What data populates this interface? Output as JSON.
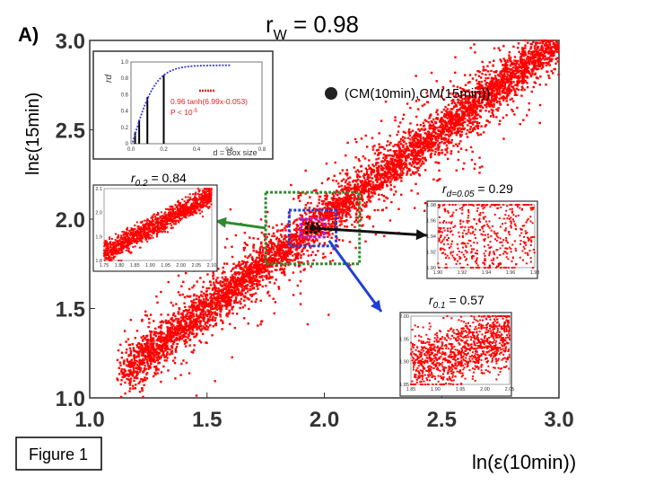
{
  "panel_label": "A)",
  "figure_label": "Figure 1",
  "main_title_r": "r",
  "main_title_sub": "W",
  "main_title_rest": " = 0.98",
  "colors": {
    "points": "#ff0000",
    "frame": "#444444",
    "green": "#2e8b2e",
    "blue": "#1f3fd6",
    "purple": "#a020f0",
    "dark": "#111111"
  },
  "chart_data": [
    {
      "type": "scatter",
      "title": "rW = 0.98",
      "xlabel": "ln(ε(10min))",
      "ylabel": "lnε(15min)",
      "xlim": [
        1.0,
        3.0
      ],
      "ylim": [
        1.0,
        3.0
      ],
      "xticks": [
        "1.0",
        "1.5",
        "2.0",
        "2.5",
        "3.0"
      ],
      "yticks": [
        "1.0",
        "1.5",
        "2.0",
        "2.5",
        "3.0"
      ],
      "legend": "(CM(10min),CM(15min))",
      "correlation": 0.98,
      "center": [
        1.95,
        1.95
      ],
      "boxes": [
        {
          "name": "d = 0.2",
          "half_width": 0.2,
          "color": "green",
          "r": 0.84
        },
        {
          "name": "d = 0.1",
          "half_width": 0.1,
          "color": "blue",
          "r": 0.57
        },
        {
          "name": "d = 0.05",
          "half_width": 0.05,
          "color": "purple",
          "r": 0.29
        },
        {
          "name": "d = 0.025",
          "half_width": 0.025,
          "color": "dark",
          "r": null
        }
      ]
    },
    {
      "type": "line",
      "title": "",
      "xlabel": "d = Box size",
      "ylabel": "rd",
      "xlim": [
        0,
        0.6
      ],
      "ylim": [
        0,
        1.0
      ],
      "xticks": [
        "0.0",
        "0.2",
        "0.4",
        "0.6",
        "0.8"
      ],
      "yticks": [
        "0",
        "0.2",
        "0.4",
        "0.6",
        "0.8",
        "1.0"
      ],
      "fit_label": "0.96 tanh(6.99x-0.053)",
      "p_label": "P < 10",
      "p_exp": "-5",
      "points": [
        [
          0.025,
          0.14
        ],
        [
          0.05,
          0.29
        ],
        [
          0.1,
          0.57
        ],
        [
          0.2,
          0.84
        ]
      ],
      "fit": {
        "a": 0.96,
        "b": 6.99,
        "c": -0.053
      }
    },
    {
      "type": "scatter",
      "name": "zoom d=0.2",
      "label_r": "r",
      "label_sub": "0.2",
      "label_rest": " = 0.84",
      "xticks": [
        "1.75",
        "1.80",
        "1.85",
        "1.90",
        "1.95",
        "2.00",
        "2.05",
        "2.10"
      ],
      "yticks": [
        "1.8",
        "1.9",
        "2.0",
        "2.1"
      ]
    },
    {
      "type": "scatter",
      "name": "zoom d=0.05",
      "label_r": "r",
      "label_sub": "d=0.05",
      "label_rest": " = 0.29",
      "xticks": [
        "1.90",
        "1.92",
        "1.94",
        "1.96",
        "1.98"
      ],
      "yticks": [
        "1.90",
        "1.92",
        "1.94",
        "1.96",
        "1.98"
      ]
    },
    {
      "type": "scatter",
      "name": "zoom d=0.1",
      "label_r": "r",
      "label_sub": "0.1",
      "label_rest": " = 0.57",
      "xticks": [
        "1.85",
        "1.90",
        "1.95",
        "2.00",
        "2.05"
      ],
      "yticks": [
        "1.85",
        "1.90",
        "1.95",
        "2.00"
      ]
    }
  ]
}
